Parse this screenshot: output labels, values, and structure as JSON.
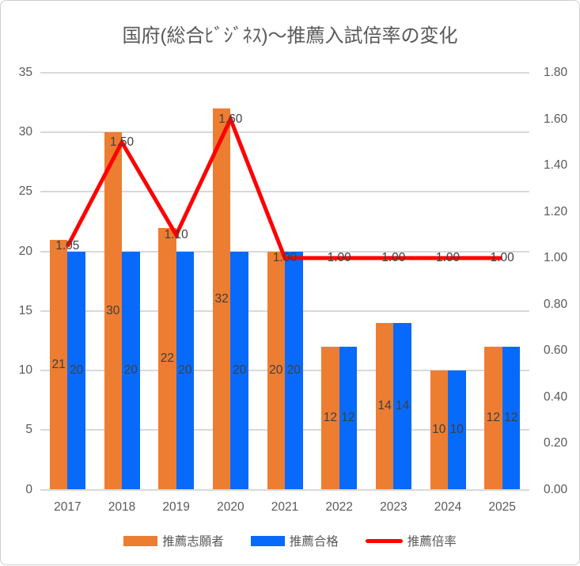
{
  "title": "国府(総合ﾋﾞｼﾞﾈｽ)～推薦入試倍率の変化",
  "colors": {
    "applicants": "#ED7D31",
    "accepted": "#086AFA",
    "ratio": "#FF0000",
    "axis_text": "#595959",
    "data_label_text": "#404040",
    "gridline": "#D9D9D9",
    "chart_border": "#D0CECE",
    "background": "#FFFFFF"
  },
  "left_axis": {
    "ticks": [
      "35",
      "30",
      "25",
      "20",
      "15",
      "10",
      "5",
      "0"
    ],
    "min": 0,
    "max": 35
  },
  "right_axis": {
    "ticks": [
      "1.80",
      "1.60",
      "1.40",
      "1.20",
      "1.00",
      "0.80",
      "0.60",
      "0.40",
      "0.20",
      "0.00"
    ],
    "min": 0.0,
    "max": 1.8
  },
  "chart_data": {
    "type": "combo",
    "title": "国府(総合ﾋﾞｼﾞﾈｽ)～推薦入試倍率の変化",
    "categories": [
      "2017",
      "2018",
      "2019",
      "2020",
      "2021",
      "2022",
      "2023",
      "2024",
      "2025"
    ],
    "series": [
      {
        "name": "推薦志願者",
        "type": "bar",
        "axis": "left",
        "color": "#ED7D31",
        "values": [
          21,
          30,
          22,
          32,
          20,
          12,
          14,
          10,
          12
        ]
      },
      {
        "name": "推薦合格",
        "type": "bar",
        "axis": "left",
        "color": "#086AFA",
        "values": [
          20,
          20,
          20,
          20,
          20,
          12,
          14,
          10,
          12
        ]
      },
      {
        "name": "推薦倍率",
        "type": "line",
        "axis": "right",
        "color": "#FF0000",
        "values": [
          1.05,
          1.5,
          1.1,
          1.6,
          1.0,
          1.0,
          1.0,
          1.0,
          1.0
        ],
        "label_decimals": 2
      }
    ],
    "left_ylim": [
      0,
      35
    ],
    "right_ylim": [
      0,
      1.8
    ],
    "grid": true,
    "legend_position": "bottom",
    "data_labels": "center"
  }
}
